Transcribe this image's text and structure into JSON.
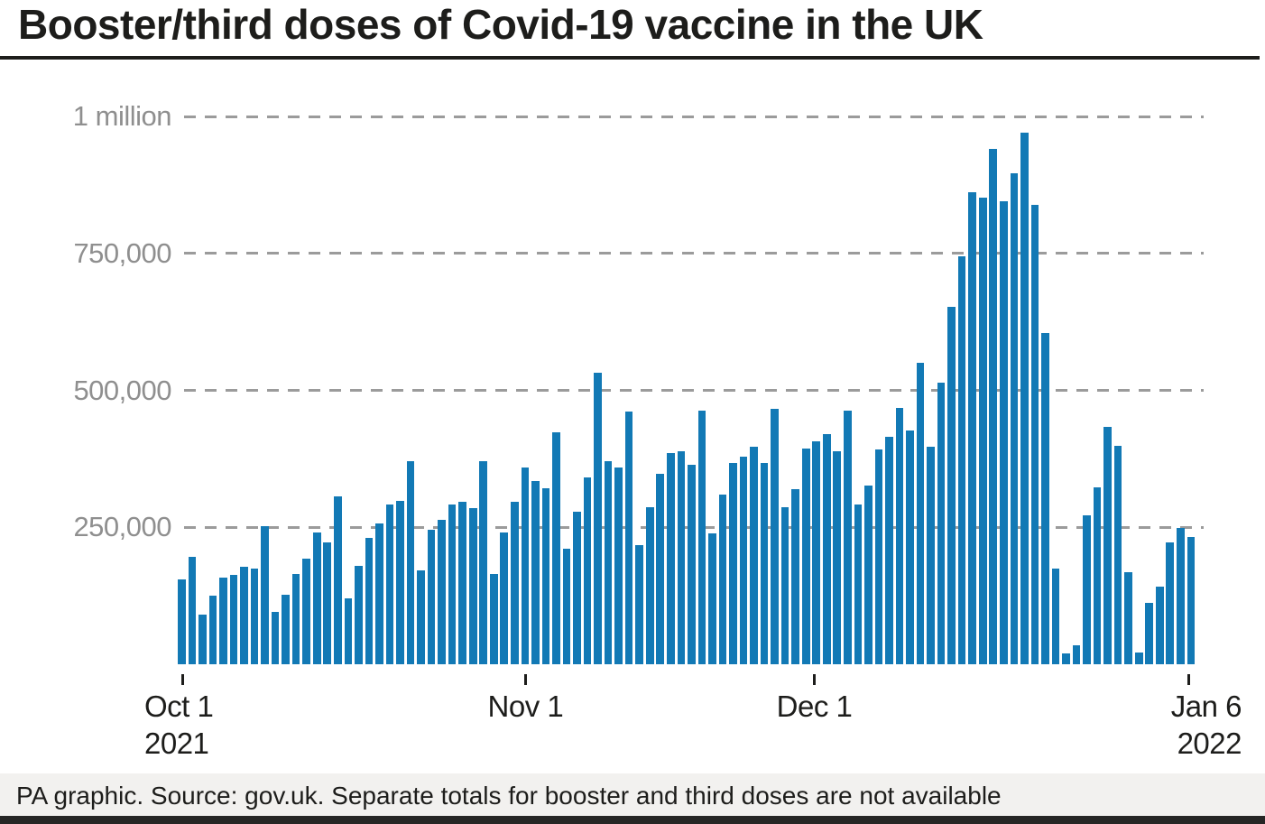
{
  "title": "Booster/third doses of Covid-19 vaccine in the UK",
  "footer": {
    "note": "PA graphic. Source: gov.uk. Separate totals for booster and third doses are not available"
  },
  "colors": {
    "bar": "#1279b5",
    "grid": "#9b9b9b",
    "y_label": "#8f8f8f",
    "axis_text": "#1d1d1b",
    "footer_bg": "#f2f1ef",
    "bottom_bar": "#262625"
  },
  "chart_data": {
    "type": "bar",
    "title": "Booster/third doses of Covid-19 vaccine in the UK",
    "xlabel": "",
    "ylabel": "",
    "start_date": "2021-10-01",
    "end_date": "2022-01-06",
    "ylim": [
      0,
      1000000
    ],
    "grid": "horizontal-dashed",
    "legend": "none",
    "y_ticks": [
      {
        "label": "1 million",
        "value": 1000000
      },
      {
        "label": "750,000",
        "value": 750000
      },
      {
        "label": "500,000",
        "value": 500000
      },
      {
        "label": "250,000",
        "value": 250000
      }
    ],
    "x_ticks": [
      {
        "label": "Oct 1",
        "sublabel": "2021",
        "pos_pct": 0.5
      },
      {
        "label": "Nov 1",
        "sublabel": "",
        "pos_pct": 34.2
      },
      {
        "label": "Dec 1",
        "sublabel": "",
        "pos_pct": 62.6
      },
      {
        "label": "Jan 6",
        "sublabel": "2022",
        "pos_pct": 99.4
      }
    ],
    "values": [
      155000,
      196000,
      91000,
      125000,
      158000,
      163000,
      178000,
      175000,
      252000,
      96000,
      127000,
      165000,
      193000,
      240000,
      222000,
      307000,
      120000,
      180000,
      230000,
      257000,
      292000,
      298000,
      370000,
      172000,
      245000,
      264000,
      292000,
      297000,
      285000,
      371000,
      165000,
      241000,
      297000,
      359000,
      334000,
      321000,
      423000,
      211000,
      278000,
      341000,
      532000,
      371000,
      359000,
      461000,
      218000,
      287000,
      348000,
      386000,
      389000,
      364000,
      463000,
      239000,
      310000,
      367000,
      379000,
      397000,
      367000,
      466000,
      287000,
      320000,
      393000,
      407000,
      420000,
      389000,
      463000,
      292000,
      327000,
      392000,
      415000,
      468000,
      427000,
      551000,
      397000,
      514000,
      653000,
      744000,
      861000,
      852000,
      941000,
      846000,
      897000,
      970000,
      839000,
      604000,
      175000,
      20000,
      35000,
      272000,
      323000,
      434000,
      399000,
      168000,
      21000,
      112000,
      142000,
      222000,
      249000,
      232000
    ]
  }
}
